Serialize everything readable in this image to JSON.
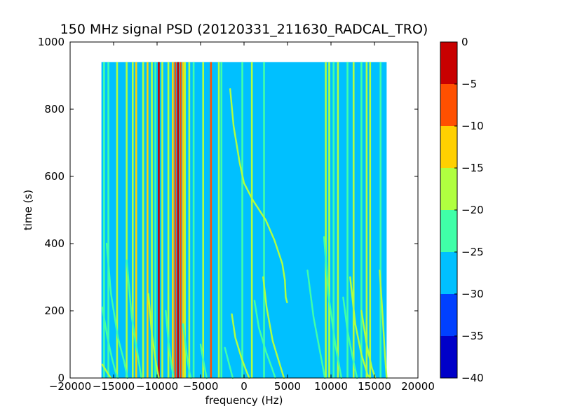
{
  "chart_data": {
    "type": "heatmap",
    "title": "150 MHz signal PSD (20120331_211630_RADCAL_TRO)",
    "xlabel": "frequency (Hz)",
    "ylabel": "time (s)",
    "xlim": [
      -20000,
      20000
    ],
    "ylim": [
      0,
      1000
    ],
    "x_ticks": [
      -20000,
      -15000,
      -10000,
      -5000,
      0,
      5000,
      10000,
      15000,
      20000
    ],
    "x_tick_labels": [
      "−20000",
      "−15000",
      "−10000",
      "−5000",
      "0",
      "5000",
      "10000",
      "15000",
      "20000"
    ],
    "y_ticks": [
      0,
      200,
      400,
      600,
      800,
      1000
    ],
    "y_tick_labels": [
      "0",
      "200",
      "400",
      "600",
      "800",
      "1000"
    ],
    "data_extent": {
      "x": [
        -16400,
        16400
      ],
      "y": [
        0,
        940
      ]
    },
    "background_level": -28,
    "colorbar": {
      "levels": [
        -40,
        -35,
        -30,
        -25,
        -20,
        -15,
        -10,
        -5,
        0
      ],
      "tick_labels": [
        "−40",
        "−35",
        "−30",
        "−25",
        "−20",
        "−15",
        "−10",
        "−5",
        "0"
      ],
      "colors": [
        "#0000c8",
        "#0040ff",
        "#00c0ff",
        "#40ffa8",
        "#b0ff40",
        "#ffd000",
        "#ff5000",
        "#c80000"
      ]
    },
    "vertical_lines": [
      {
        "x": -16100,
        "level": -22
      },
      {
        "x": -15600,
        "level": -22
      },
      {
        "x": -14600,
        "level": -20
      },
      {
        "x": -13500,
        "level": -18
      },
      {
        "x": -12800,
        "level": -20
      },
      {
        "x": -12400,
        "level": -13
      },
      {
        "x": -11600,
        "level": -18
      },
      {
        "x": -11100,
        "level": -13
      },
      {
        "x": -10600,
        "level": -20
      },
      {
        "x": -10200,
        "level": -22
      },
      {
        "x": -9800,
        "level": -3
      },
      {
        "x": -9400,
        "level": -20
      },
      {
        "x": -8700,
        "level": -18
      },
      {
        "x": -8200,
        "level": -13
      },
      {
        "x": -7900,
        "level": -8
      },
      {
        "x": -7600,
        "level": -3
      },
      {
        "x": -7300,
        "level": -8
      },
      {
        "x": -7000,
        "level": -13
      },
      {
        "x": -6800,
        "level": -18
      },
      {
        "x": -6300,
        "level": -20
      },
      {
        "x": -5800,
        "level": -22
      },
      {
        "x": -4700,
        "level": -20
      },
      {
        "x": -3800,
        "level": -8
      },
      {
        "x": -2900,
        "level": -18
      },
      {
        "x": -2600,
        "level": -22
      },
      {
        "x": -200,
        "level": -22
      },
      {
        "x": 900,
        "level": -20
      },
      {
        "x": 2300,
        "level": -22
      },
      {
        "x": 9400,
        "level": -18
      },
      {
        "x": 9800,
        "level": -20
      },
      {
        "x": 10300,
        "level": -22
      },
      {
        "x": 10800,
        "level": -20
      },
      {
        "x": 11900,
        "level": -22
      },
      {
        "x": 12600,
        "level": -20
      },
      {
        "x": 13500,
        "level": -22
      },
      {
        "x": 14100,
        "level": -18
      },
      {
        "x": 14500,
        "level": -20
      },
      {
        "x": 15700,
        "level": -22
      }
    ],
    "curves": [
      {
        "name": "",
        "level": -18,
        "points": [
          [
            -1600,
            860
          ],
          [
            -1200,
            750
          ],
          [
            -500,
            640
          ],
          [
            0,
            580
          ],
          [
            1000,
            530
          ],
          [
            2500,
            470
          ],
          [
            3500,
            410
          ],
          [
            4400,
            340
          ],
          [
            4700,
            290
          ],
          [
            4800,
            240
          ],
          [
            4950,
            225
          ]
        ]
      },
      {
        "name": "",
        "level": -20,
        "points": [
          [
            -16300,
            40
          ],
          [
            -15700,
            15
          ],
          [
            -15300,
            0
          ]
        ]
      },
      {
        "name": "",
        "level": -22,
        "points": [
          [
            -16300,
            210
          ],
          [
            -15700,
            120
          ],
          [
            -15200,
            60
          ],
          [
            -14800,
            20
          ],
          [
            -14500,
            0
          ]
        ]
      },
      {
        "name": "",
        "level": -22,
        "points": [
          [
            -15800,
            400
          ],
          [
            -15300,
            250
          ],
          [
            -14500,
            120
          ],
          [
            -13800,
            50
          ],
          [
            -13400,
            0
          ]
        ]
      },
      {
        "name": "",
        "level": -22,
        "points": [
          [
            -13500,
            350
          ],
          [
            -12900,
            180
          ],
          [
            -12300,
            80
          ],
          [
            -11800,
            0
          ]
        ]
      },
      {
        "name": "",
        "level": -20,
        "points": [
          [
            -11000,
            250
          ],
          [
            -10600,
            130
          ],
          [
            -10100,
            40
          ],
          [
            -9800,
            0
          ]
        ]
      },
      {
        "name": "",
        "level": -22,
        "points": [
          [
            -9000,
            200
          ],
          [
            -8700,
            110
          ],
          [
            -8300,
            30
          ],
          [
            -8100,
            0
          ]
        ]
      },
      {
        "name": "",
        "level": -22,
        "points": [
          [
            -7000,
            160
          ],
          [
            -6600,
            70
          ],
          [
            -6300,
            20
          ],
          [
            -6100,
            0
          ]
        ]
      },
      {
        "name": "",
        "level": -22,
        "points": [
          [
            -5000,
            100
          ],
          [
            -4600,
            40
          ],
          [
            -4300,
            0
          ]
        ]
      },
      {
        "name": "",
        "level": -22,
        "points": [
          [
            -2200,
            90
          ],
          [
            -1700,
            40
          ],
          [
            -1300,
            0
          ]
        ]
      },
      {
        "name": "",
        "level": -20,
        "points": [
          [
            -1400,
            190
          ],
          [
            -1000,
            120
          ],
          [
            -300,
            60
          ],
          [
            200,
            25
          ],
          [
            600,
            0
          ]
        ]
      },
      {
        "name": "",
        "level": -22,
        "points": [
          [
            1200,
            230
          ],
          [
            1700,
            150
          ],
          [
            2500,
            80
          ],
          [
            3200,
            30
          ],
          [
            3600,
            0
          ]
        ]
      },
      {
        "name": "",
        "level": -20,
        "points": [
          [
            2200,
            300
          ],
          [
            2600,
            210
          ],
          [
            3300,
            110
          ],
          [
            4000,
            50
          ],
          [
            4600,
            0
          ]
        ]
      },
      {
        "name": "",
        "level": -22,
        "points": [
          [
            7300,
            320
          ],
          [
            8000,
            180
          ],
          [
            8800,
            70
          ],
          [
            9300,
            0
          ]
        ]
      },
      {
        "name": "",
        "level": -22,
        "points": [
          [
            9200,
            420
          ],
          [
            9700,
            250
          ],
          [
            10500,
            100
          ],
          [
            11200,
            0
          ]
        ]
      },
      {
        "name": "",
        "level": -22,
        "points": [
          [
            11400,
            240
          ],
          [
            11900,
            140
          ],
          [
            12500,
            60
          ],
          [
            13000,
            0
          ]
        ]
      },
      {
        "name": "",
        "level": -20,
        "points": [
          [
            12200,
            300
          ],
          [
            12800,
            160
          ],
          [
            13500,
            70
          ],
          [
            14200,
            10
          ],
          [
            14500,
            0
          ]
        ]
      },
      {
        "name": "",
        "level": -18,
        "points": [
          [
            13500,
            200
          ],
          [
            14100,
            100
          ],
          [
            14700,
            30
          ],
          [
            15100,
            0
          ]
        ]
      },
      {
        "name": "",
        "level": -20,
        "points": [
          [
            15600,
            320
          ],
          [
            15900,
            200
          ],
          [
            16200,
            70
          ],
          [
            16400,
            0
          ]
        ]
      }
    ]
  }
}
